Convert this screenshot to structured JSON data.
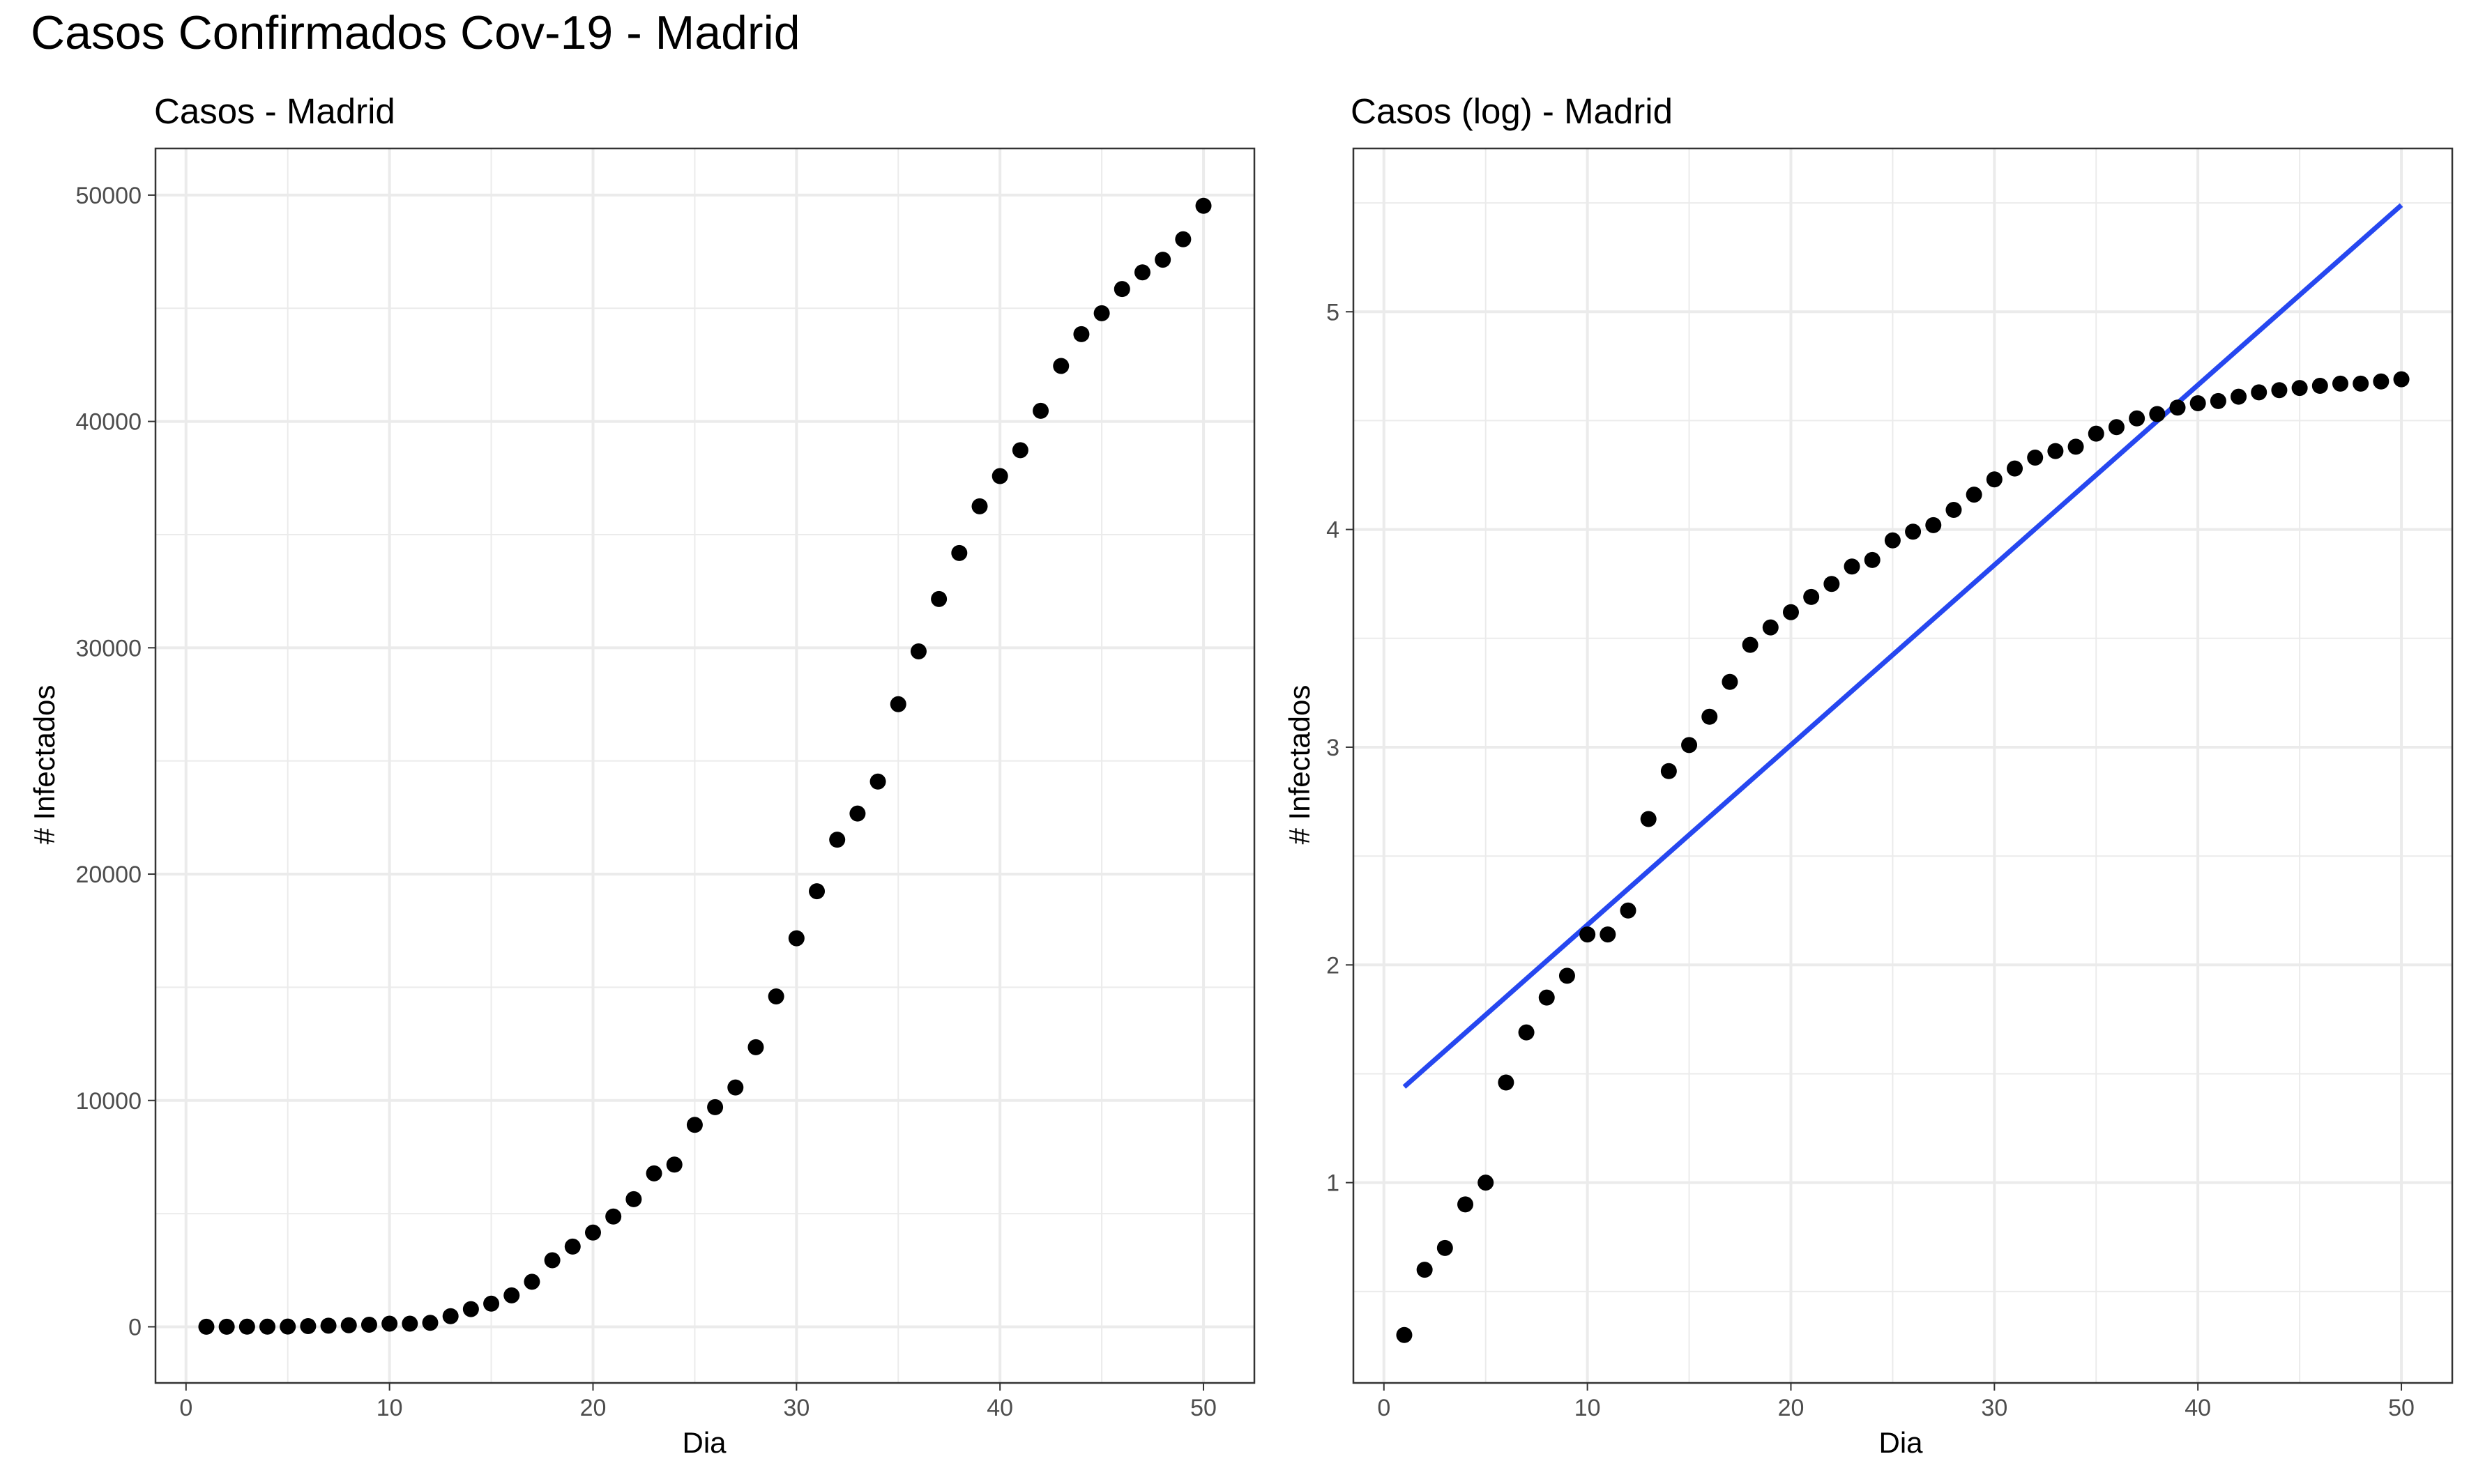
{
  "figure_title": "Casos Confirmados Cov-19 - Madrid",
  "colors": {
    "points": "#000000",
    "fit_line": "#2647f0",
    "grid": "#ebebeb",
    "panel_border": "#333333",
    "background": "#ffffff"
  },
  "chart_data": [
    {
      "type": "scatter",
      "title": "Casos - Madrid",
      "xlabel": "Dia",
      "ylabel": "# Infectados",
      "xlim": [
        -1.5,
        52.5
      ],
      "ylim": [
        -2480,
        52060
      ],
      "xticks": [
        0,
        10,
        20,
        30,
        40,
        50
      ],
      "yticks": [
        0,
        10000,
        20000,
        30000,
        40000,
        50000
      ],
      "grid": true,
      "legend": "none",
      "x": [
        1,
        2,
        3,
        4,
        5,
        6,
        7,
        8,
        9,
        10,
        11,
        12,
        13,
        14,
        15,
        16,
        17,
        18,
        19,
        20,
        21,
        22,
        23,
        24,
        25,
        26,
        27,
        28,
        29,
        30,
        31,
        32,
        33,
        34,
        35,
        36,
        37,
        38,
        39,
        40,
        41,
        42,
        43,
        44,
        45,
        46,
        47,
        48,
        49,
        50
      ],
      "y": [
        2,
        4,
        5,
        8,
        10,
        29,
        49,
        70,
        90,
        137,
        137,
        177,
        469,
        782,
        1024,
        1388,
        1990,
        2940,
        3544,
        4165,
        4871,
        5637,
        6777,
        7165,
        8921,
        9702,
        10575,
        12352,
        14597,
        17166,
        19243,
        21520,
        22677,
        24090,
        27509,
        29840,
        32155,
        34188,
        36249,
        37584,
        38729,
        40469,
        42450,
        43855,
        44781,
        45849,
        46587,
        47146,
        48048,
        49526
      ]
    },
    {
      "type": "scatter",
      "title": "Casos (log) - Madrid",
      "xlabel": "Dia",
      "ylabel": "# Infectados",
      "xlim": [
        -1.5,
        52.5
      ],
      "ylim": [
        0.08,
        5.75
      ],
      "xticks": [
        0,
        10,
        20,
        30,
        40,
        50
      ],
      "yticks": [
        1,
        2,
        3,
        4,
        5
      ],
      "grid": true,
      "legend": "none",
      "x": [
        1,
        2,
        3,
        4,
        5,
        6,
        7,
        8,
        9,
        10,
        11,
        12,
        13,
        14,
        15,
        16,
        17,
        18,
        19,
        20,
        21,
        22,
        23,
        24,
        25,
        26,
        27,
        28,
        29,
        30,
        31,
        32,
        33,
        34,
        35,
        36,
        37,
        38,
        39,
        40,
        41,
        42,
        43,
        44,
        45,
        46,
        47,
        48,
        49,
        50
      ],
      "y": [
        0.3,
        0.6,
        0.7,
        0.9,
        1.0,
        1.46,
        1.69,
        1.85,
        1.95,
        2.14,
        2.14,
        2.25,
        2.67,
        2.89,
        3.01,
        3.14,
        3.3,
        3.47,
        3.55,
        3.62,
        3.69,
        3.75,
        3.83,
        3.86,
        3.95,
        3.99,
        4.02,
        4.09,
        4.16,
        4.23,
        4.28,
        4.33,
        4.36,
        4.38,
        4.44,
        4.47,
        4.51,
        4.53,
        4.56,
        4.58,
        4.59,
        4.61,
        4.63,
        4.64,
        4.65,
        4.66,
        4.67,
        4.67,
        4.68,
        4.69
      ],
      "fit_line": {
        "x": [
          1,
          50
        ],
        "y": [
          1.44,
          5.49
        ]
      }
    }
  ]
}
